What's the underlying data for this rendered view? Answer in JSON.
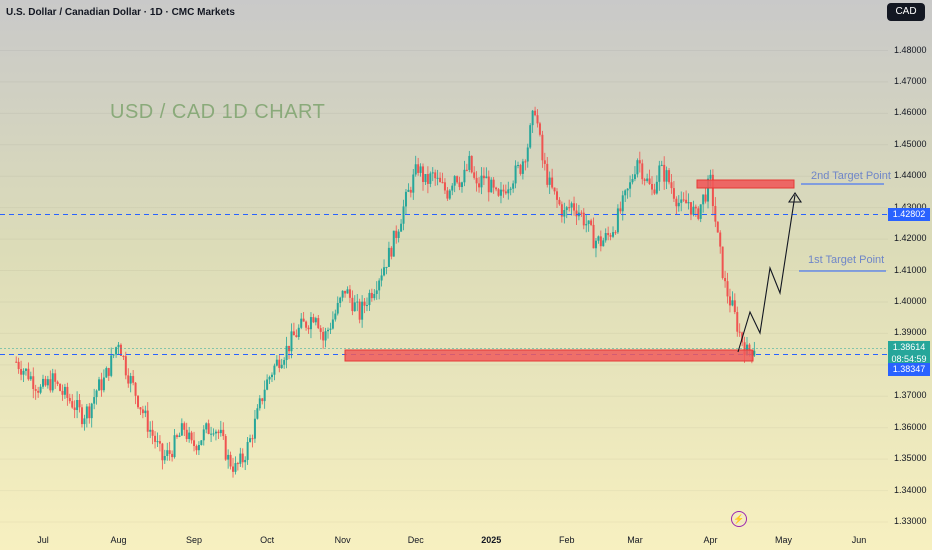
{
  "header": {
    "title": "U.S. Dollar / Canadian Dollar · 1D · CMC Markets",
    "currency_button": "CAD"
  },
  "annotations": {
    "watermark": "USD / CAD 1D CHART",
    "target2_label": "2nd Target Point",
    "target1_label": "1st Target Point"
  },
  "price_tags": {
    "current": "1.38614",
    "countdown": "08:54:59",
    "upper_line": "1.42802",
    "lower_line": "1.38347"
  },
  "icons": {
    "event": "lightning-icon"
  },
  "colors": {
    "up": "#26a69a",
    "down": "#ef5350",
    "zone": "#f05a5a",
    "line": "#2962ff"
  },
  "chart_data": {
    "type": "candlestick",
    "ylim": [
      1.33,
      1.485
    ],
    "y_ticks": [
      "1.48000",
      "1.47000",
      "1.46000",
      "1.45000",
      "1.44000",
      "1.43000",
      "1.42000",
      "1.41000",
      "1.40000",
      "1.39000",
      "1.38000",
      "1.37000",
      "1.36000",
      "1.35000",
      "1.34000",
      "1.33000"
    ],
    "x_ticks": [
      "Jul",
      "Aug",
      "Sep",
      "Oct",
      "Nov",
      "Dec",
      "2025",
      "Feb",
      "Mar",
      "Apr",
      "May",
      "Jun"
    ],
    "x_positions": [
      0,
      31,
      62,
      92,
      123,
      153,
      184,
      215,
      243,
      274,
      304,
      335
    ],
    "closes": [
      [
        -11,
        1.381
      ],
      [
        -6,
        1.377
      ],
      [
        -1,
        1.372
      ],
      [
        4,
        1.375
      ],
      [
        8,
        1.371
      ],
      [
        12,
        1.368
      ],
      [
        16,
        1.364
      ],
      [
        19,
        1.366
      ],
      [
        22,
        1.372
      ],
      [
        25,
        1.375
      ],
      [
        28,
        1.381
      ],
      [
        31,
        1.388
      ],
      [
        34,
        1.379
      ],
      [
        37,
        1.373
      ],
      [
        40,
        1.367
      ],
      [
        43,
        1.361
      ],
      [
        46,
        1.356
      ],
      [
        49,
        1.35
      ],
      [
        52,
        1.352
      ],
      [
        55,
        1.356
      ],
      [
        58,
        1.36
      ],
      [
        61,
        1.354
      ],
      [
        64,
        1.356
      ],
      [
        67,
        1.359
      ],
      [
        70,
        1.361
      ],
      [
        73,
        1.357
      ],
      [
        76,
        1.35
      ],
      [
        79,
        1.347
      ],
      [
        82,
        1.35
      ],
      [
        85,
        1.356
      ],
      [
        88,
        1.364
      ],
      [
        91,
        1.373
      ],
      [
        94,
        1.378
      ],
      [
        97,
        1.382
      ],
      [
        100,
        1.385
      ],
      [
        103,
        1.389
      ],
      [
        106,
        1.392
      ],
      [
        109,
        1.394
      ],
      [
        112,
        1.397
      ],
      [
        115,
        1.388
      ],
      [
        118,
        1.393
      ],
      [
        121,
        1.398
      ],
      [
        124,
        1.404
      ],
      [
        127,
        1.4
      ],
      [
        130,
        1.396
      ],
      [
        133,
        1.401
      ],
      [
        136,
        1.405
      ],
      [
        139,
        1.41
      ],
      [
        142,
        1.415
      ],
      [
        145,
        1.422
      ],
      [
        148,
        1.43
      ],
      [
        151,
        1.437
      ],
      [
        154,
        1.443
      ],
      [
        157,
        1.438
      ],
      [
        160,
        1.44
      ],
      [
        163,
        1.437
      ],
      [
        166,
        1.435
      ],
      [
        169,
        1.441
      ],
      [
        172,
        1.438
      ],
      [
        175,
        1.444
      ],
      [
        178,
        1.436
      ],
      [
        181,
        1.44
      ],
      [
        184,
        1.436
      ],
      [
        187,
        1.432
      ],
      [
        190,
        1.437
      ],
      [
        193,
        1.44
      ],
      [
        196,
        1.443
      ],
      [
        199,
        1.45
      ],
      [
        202,
        1.462
      ],
      [
        205,
        1.445
      ],
      [
        208,
        1.437
      ],
      [
        211,
        1.432
      ],
      [
        214,
        1.428
      ],
      [
        217,
        1.431
      ],
      [
        220,
        1.429
      ],
      [
        223,
        1.425
      ],
      [
        226,
        1.42
      ],
      [
        229,
        1.419
      ],
      [
        232,
        1.421
      ],
      [
        235,
        1.425
      ],
      [
        238,
        1.431
      ],
      [
        241,
        1.437
      ],
      [
        244,
        1.446
      ],
      [
        247,
        1.44
      ],
      [
        250,
        1.435
      ],
      [
        253,
        1.442
      ],
      [
        256,
        1.44
      ],
      [
        259,
        1.435
      ],
      [
        262,
        1.43
      ],
      [
        265,
        1.432
      ],
      [
        268,
        1.427
      ],
      [
        271,
        1.433
      ],
      [
        274,
        1.438
      ],
      [
        277,
        1.42
      ],
      [
        280,
        1.405
      ],
      [
        283,
        1.398
      ],
      [
        286,
        1.39
      ],
      [
        289,
        1.384
      ],
      [
        292,
        1.386
      ]
    ]
  }
}
